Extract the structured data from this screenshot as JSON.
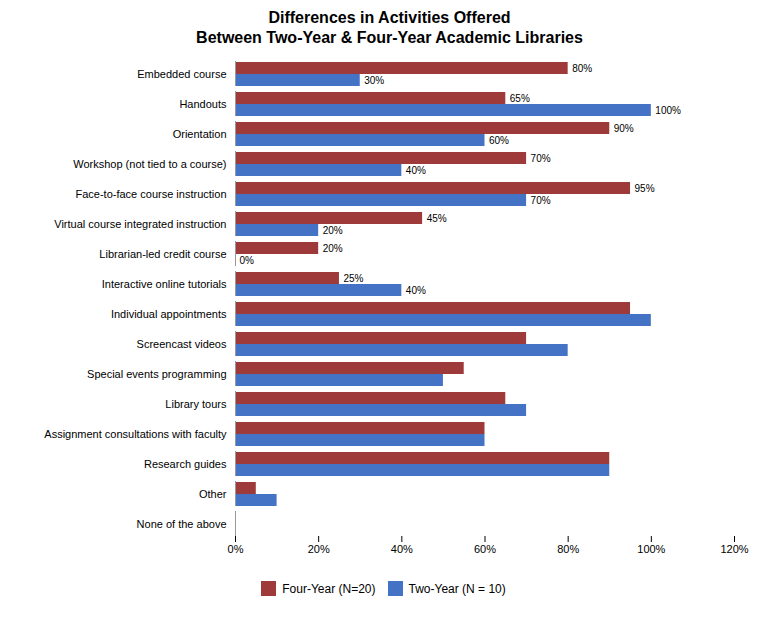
{
  "chart_data": {
    "type": "bar",
    "orientation": "horizontal",
    "title": "Differences in Activities Offered\nBetween Two-Year & Four-Year Academic Libraries",
    "categories": [
      "None of the above",
      "Other",
      "Research guides",
      "Assignment consultations with faculty",
      "Library tours",
      "Special events programming",
      "Screencast videos",
      "Individual appointments",
      "Interactive online tutorials",
      "Librarian-led credit course",
      "Virtual course integrated instruction",
      "Face-to-face course instruction",
      "Workshop (not tied to a course)",
      "Orientation",
      "Handouts",
      "Embedded course"
    ],
    "series": [
      {
        "name": "Four-Year (N=20)",
        "color": "#9E3A3A",
        "values": [
          0,
          5,
          90,
          60,
          65,
          55,
          70,
          95,
          25,
          20,
          45,
          95,
          70,
          90,
          65,
          80
        ],
        "value_labels": [
          null,
          null,
          null,
          null,
          null,
          null,
          null,
          null,
          "25%",
          "20%",
          "45%",
          "95%",
          "70%",
          "90%",
          "65%",
          "80%"
        ]
      },
      {
        "name": "Two-Year (N = 10)",
        "color": "#4472C4",
        "values": [
          0,
          10,
          90,
          60,
          70,
          50,
          80,
          100,
          40,
          0,
          20,
          70,
          40,
          60,
          100,
          30
        ],
        "value_labels": [
          null,
          null,
          null,
          null,
          null,
          null,
          null,
          null,
          "40%",
          "0%",
          "20%",
          "70%",
          "40%",
          "60%",
          "100%",
          "30%"
        ]
      }
    ],
    "xlim": [
      0,
      120
    ],
    "xticks": [
      {
        "value": 0,
        "label": "0%"
      },
      {
        "value": 20,
        "label": "20%"
      },
      {
        "value": 40,
        "label": "40%"
      },
      {
        "value": 60,
        "label": "60%"
      },
      {
        "value": 80,
        "label": "80%"
      },
      {
        "value": 100,
        "label": "100%"
      },
      {
        "value": 120,
        "label": "120%"
      }
    ],
    "grid": false,
    "legend": "bottom",
    "data_labels": true
  }
}
